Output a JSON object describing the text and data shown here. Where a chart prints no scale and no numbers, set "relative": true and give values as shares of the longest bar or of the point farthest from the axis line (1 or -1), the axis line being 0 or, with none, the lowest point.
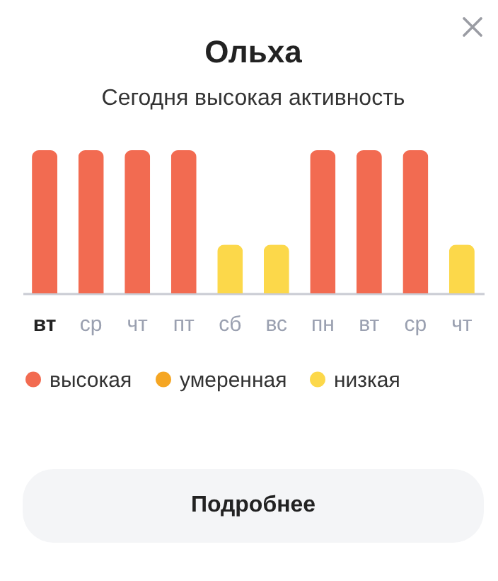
{
  "chart_data": {
    "type": "bar",
    "title": "Ольха",
    "subtitle": "Сегодня высокая активность",
    "categories": [
      "вт",
      "ср",
      "чт",
      "пт",
      "сб",
      "вс",
      "пн",
      "вт",
      "ср",
      "чт"
    ],
    "relative": true,
    "stacked": true,
    "legend": "bottom",
    "annotations": [
      "Подробнее"
    ],
    "series": [
      {
        "name": "высокая",
        "color": "#f26b51",
        "values": [
          1,
          1,
          1,
          1,
          null,
          null,
          1,
          1,
          1,
          null
        ]
      },
      {
        "name": "умеренная",
        "color": "#f5a623",
        "values": [
          null,
          null,
          null,
          null,
          null,
          null,
          null,
          null,
          null,
          null
        ]
      },
      {
        "name": "низкая",
        "color": "#fcd84a",
        "values": [
          null,
          null,
          null,
          null,
          0.34,
          0.34,
          null,
          null,
          null,
          0.34
        ]
      }
    ]
  }
}
